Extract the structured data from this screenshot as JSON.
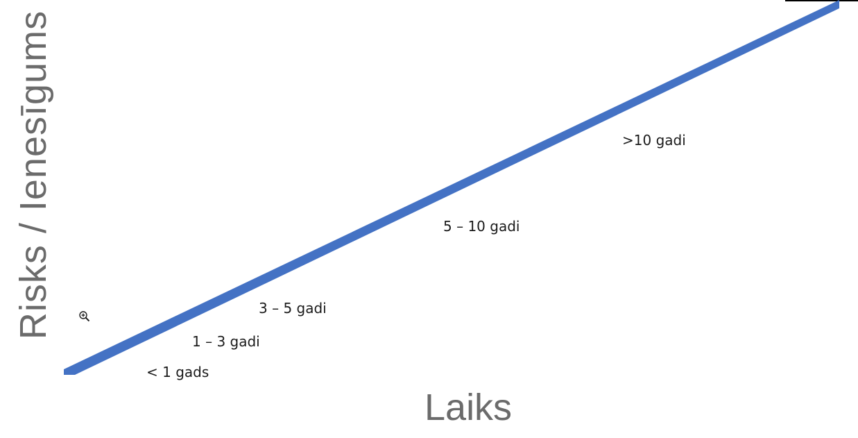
{
  "axes": {
    "y_label": "Risks / Ienesīgums",
    "x_label": "Laiks"
  },
  "line": {
    "color": "#4472c4"
  },
  "horizons": [
    "< 1 gads",
    "1 – 3 gadi",
    "3 – 5 gadi",
    "5 – 10 gadi",
    ">10 gadi"
  ],
  "cursor": {
    "icon": "zoom-in-icon"
  }
}
